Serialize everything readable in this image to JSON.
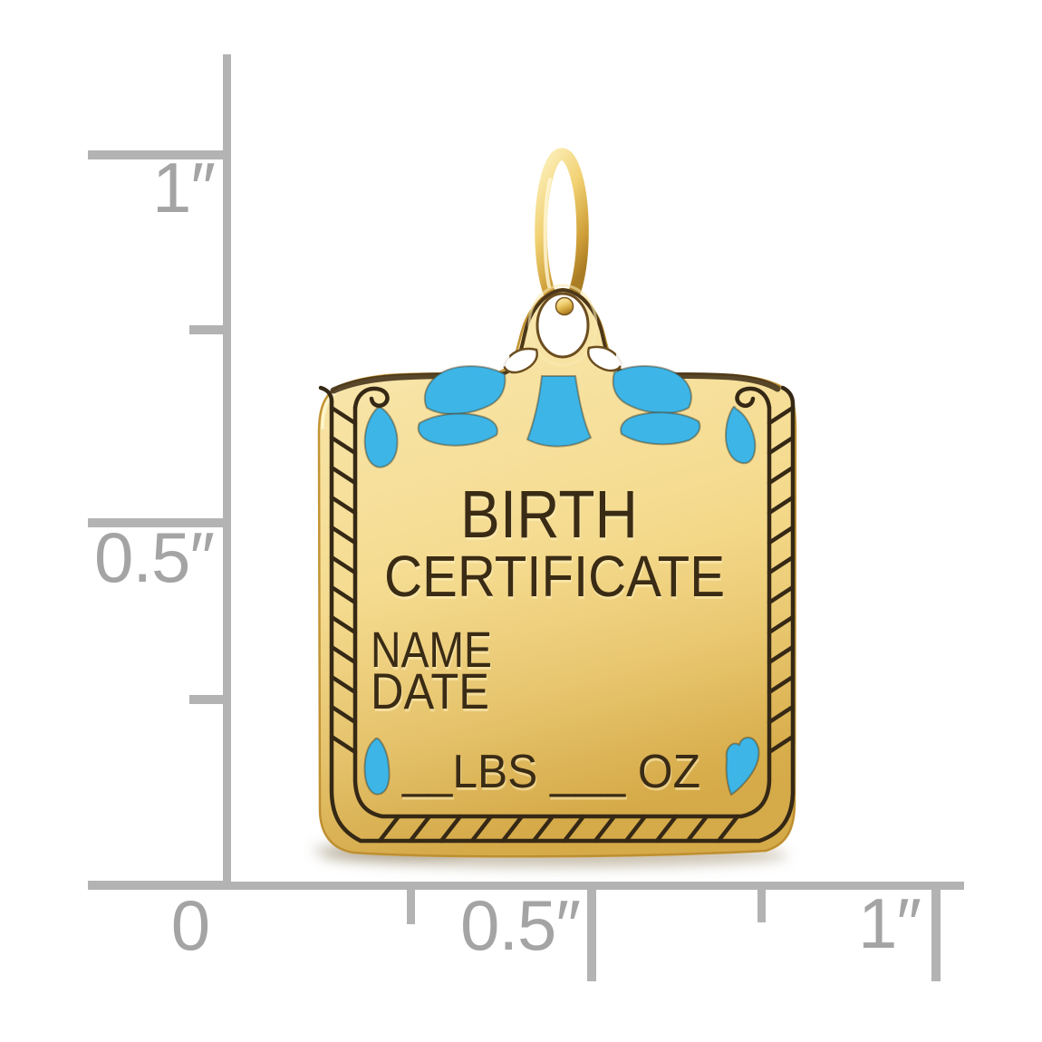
{
  "image": {
    "kind": "jewelry product photo",
    "subject": "Gold birth certificate charm pendant with blue enamel bow shown against inch ruler",
    "background_color": "#ffffff"
  },
  "colors": {
    "ruler_line": "#b3b3b3",
    "ruler_label": "#a4a4a4",
    "gold_light": "#f9ecc0",
    "gold_mid": "#f3d57e",
    "gold_deep": "#e2b44a",
    "engraving": "#3a2b15",
    "enamel_blue": "#3db5e7"
  },
  "ruler": {
    "unit": "inches",
    "vertical_labels": {
      "one": "1″",
      "half": "0.5″"
    },
    "horizontal_labels": {
      "zero": "0",
      "half": "0.5″",
      "one": "1″"
    }
  },
  "charm": {
    "title_line1": "BIRTH",
    "title_line2": "CERTIFICATE",
    "field_name": "NAME",
    "field_date": "DATE",
    "weight_line": "__LBS ___ OZ",
    "icons": [
      "bow-icon",
      "teardrop-icon",
      "heart-icon",
      "jump-ring-icon"
    ]
  }
}
